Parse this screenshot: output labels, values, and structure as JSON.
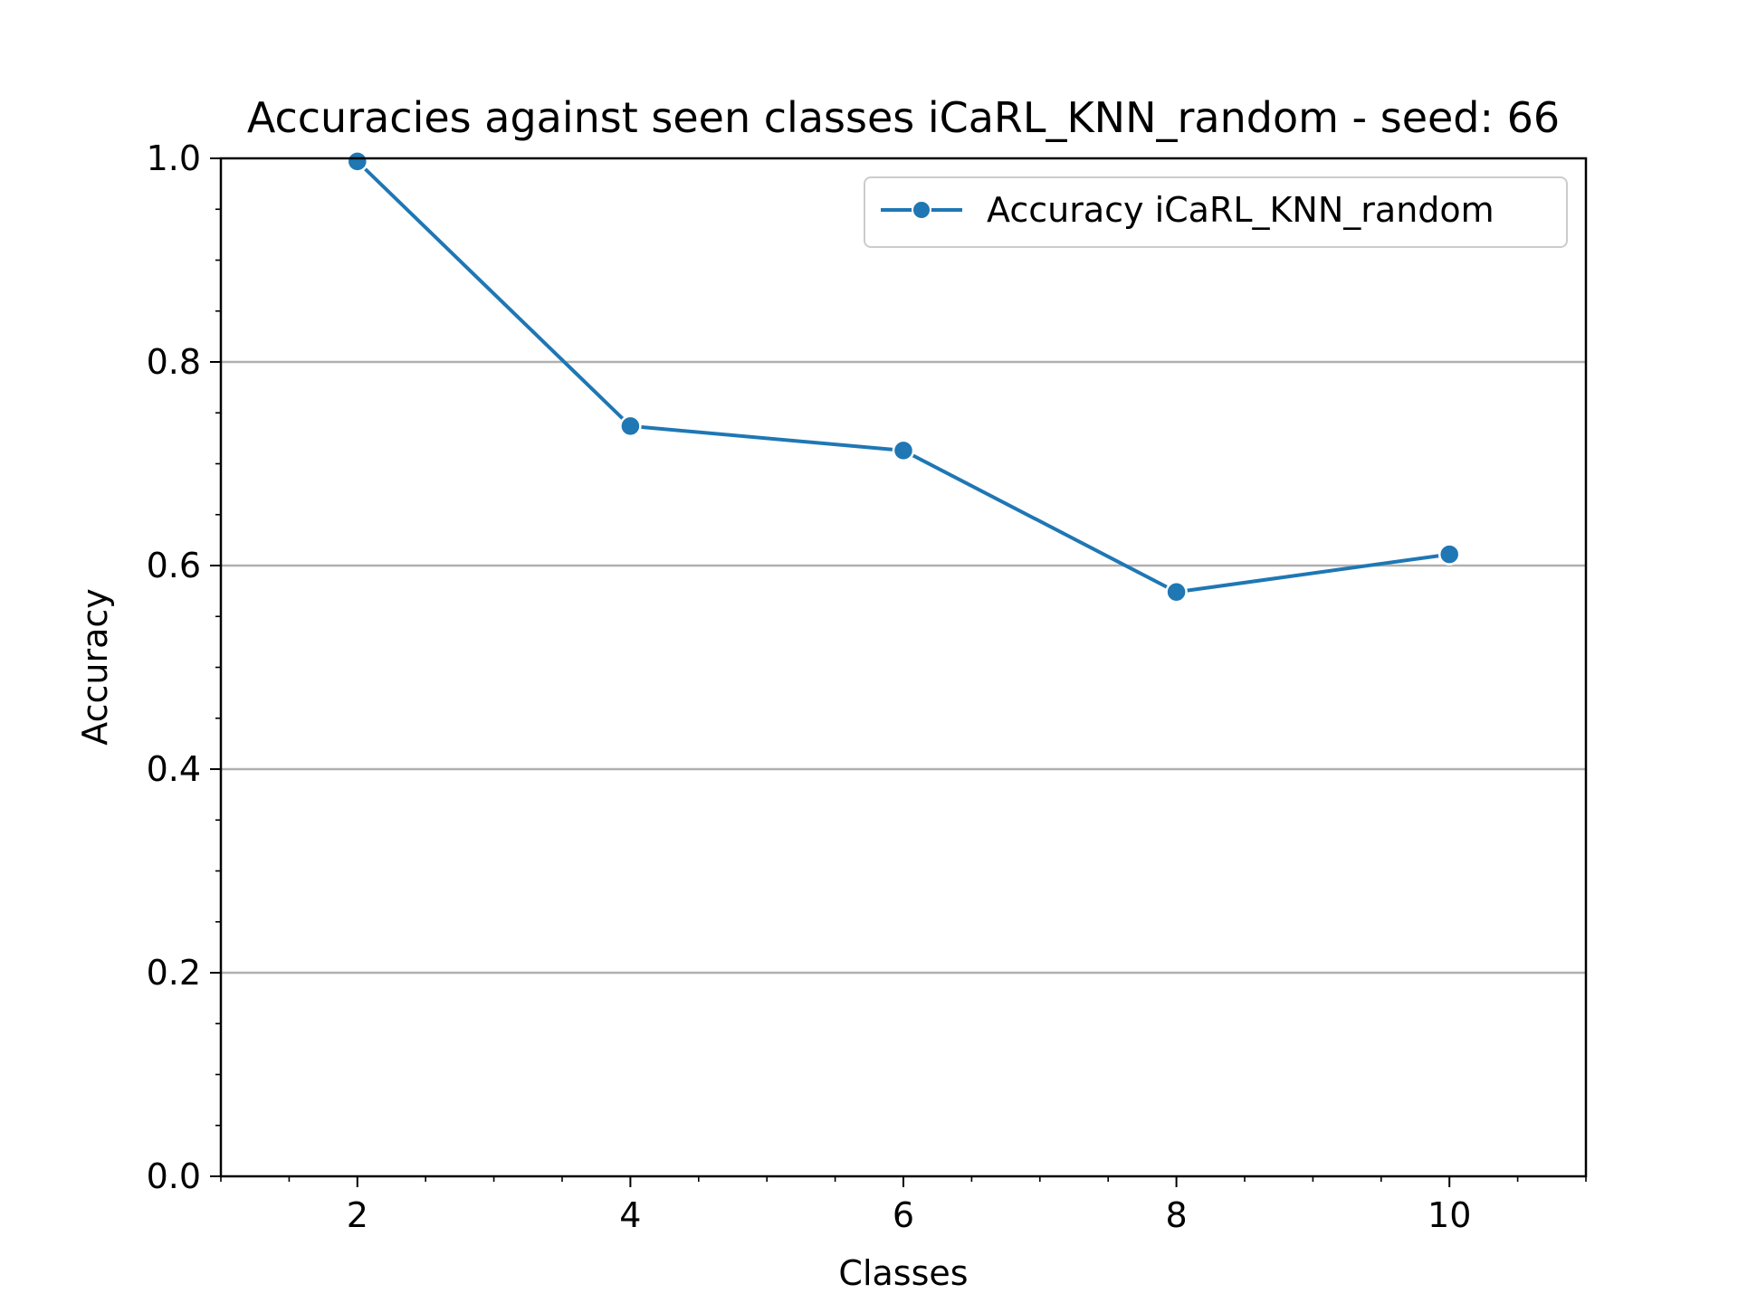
{
  "chart_data": {
    "type": "line",
    "title": "Accuracies against seen classes iCaRL_KNN_random - seed: 66",
    "xlabel": "Classes",
    "ylabel": "Accuracy",
    "xlim": [
      1,
      11
    ],
    "ylim": [
      0.0,
      1.0
    ],
    "xticks": [
      2,
      4,
      6,
      8,
      10
    ],
    "xtick_labels": [
      "2",
      "4",
      "6",
      "8",
      "10"
    ],
    "yticks": [
      0.0,
      0.2,
      0.4,
      0.6,
      0.8,
      1.0
    ],
    "ytick_labels": [
      "0.0",
      "0.2",
      "0.4",
      "0.6",
      "0.8",
      "1.0"
    ],
    "grid": "horizontal",
    "legend_position": "top-right",
    "x": [
      2,
      4,
      6,
      8,
      10
    ],
    "series": [
      {
        "name": "Accuracy iCaRL_KNN_random",
        "values": [
          0.997,
          0.737,
          0.713,
          0.574,
          0.611
        ],
        "color": "#1f77b4",
        "marker": "circle"
      }
    ]
  }
}
